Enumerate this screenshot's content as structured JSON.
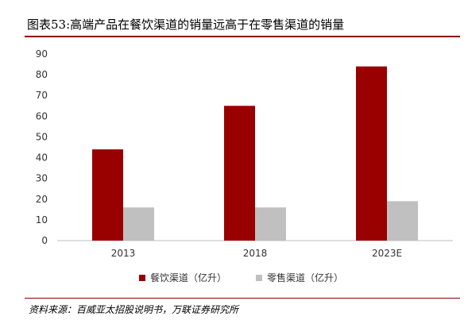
{
  "title": "图表53:高端产品在餐饮渠道的销量远高于在零售渠道的销量",
  "source": "资料来源：百威亚太招股说明书，万联证券研究所",
  "colors": {
    "accent": "#8b0000",
    "series1": "#990000",
    "series2": "#c0c0c0",
    "axis": "#bfbfbf"
  },
  "chart_data": {
    "type": "bar",
    "categories": [
      "2013",
      "2018",
      "2023E"
    ],
    "series": [
      {
        "name": "餐饮渠道（亿升）",
        "values": [
          44,
          65,
          84
        ]
      },
      {
        "name": "零售渠道（亿升）",
        "values": [
          16,
          16,
          19
        ]
      }
    ],
    "ylim": [
      0,
      90
    ],
    "yticks": [
      "0",
      "10",
      "20",
      "30",
      "40",
      "50",
      "60",
      "70",
      "80",
      "90"
    ],
    "grid": false,
    "legend": "bottom"
  }
}
